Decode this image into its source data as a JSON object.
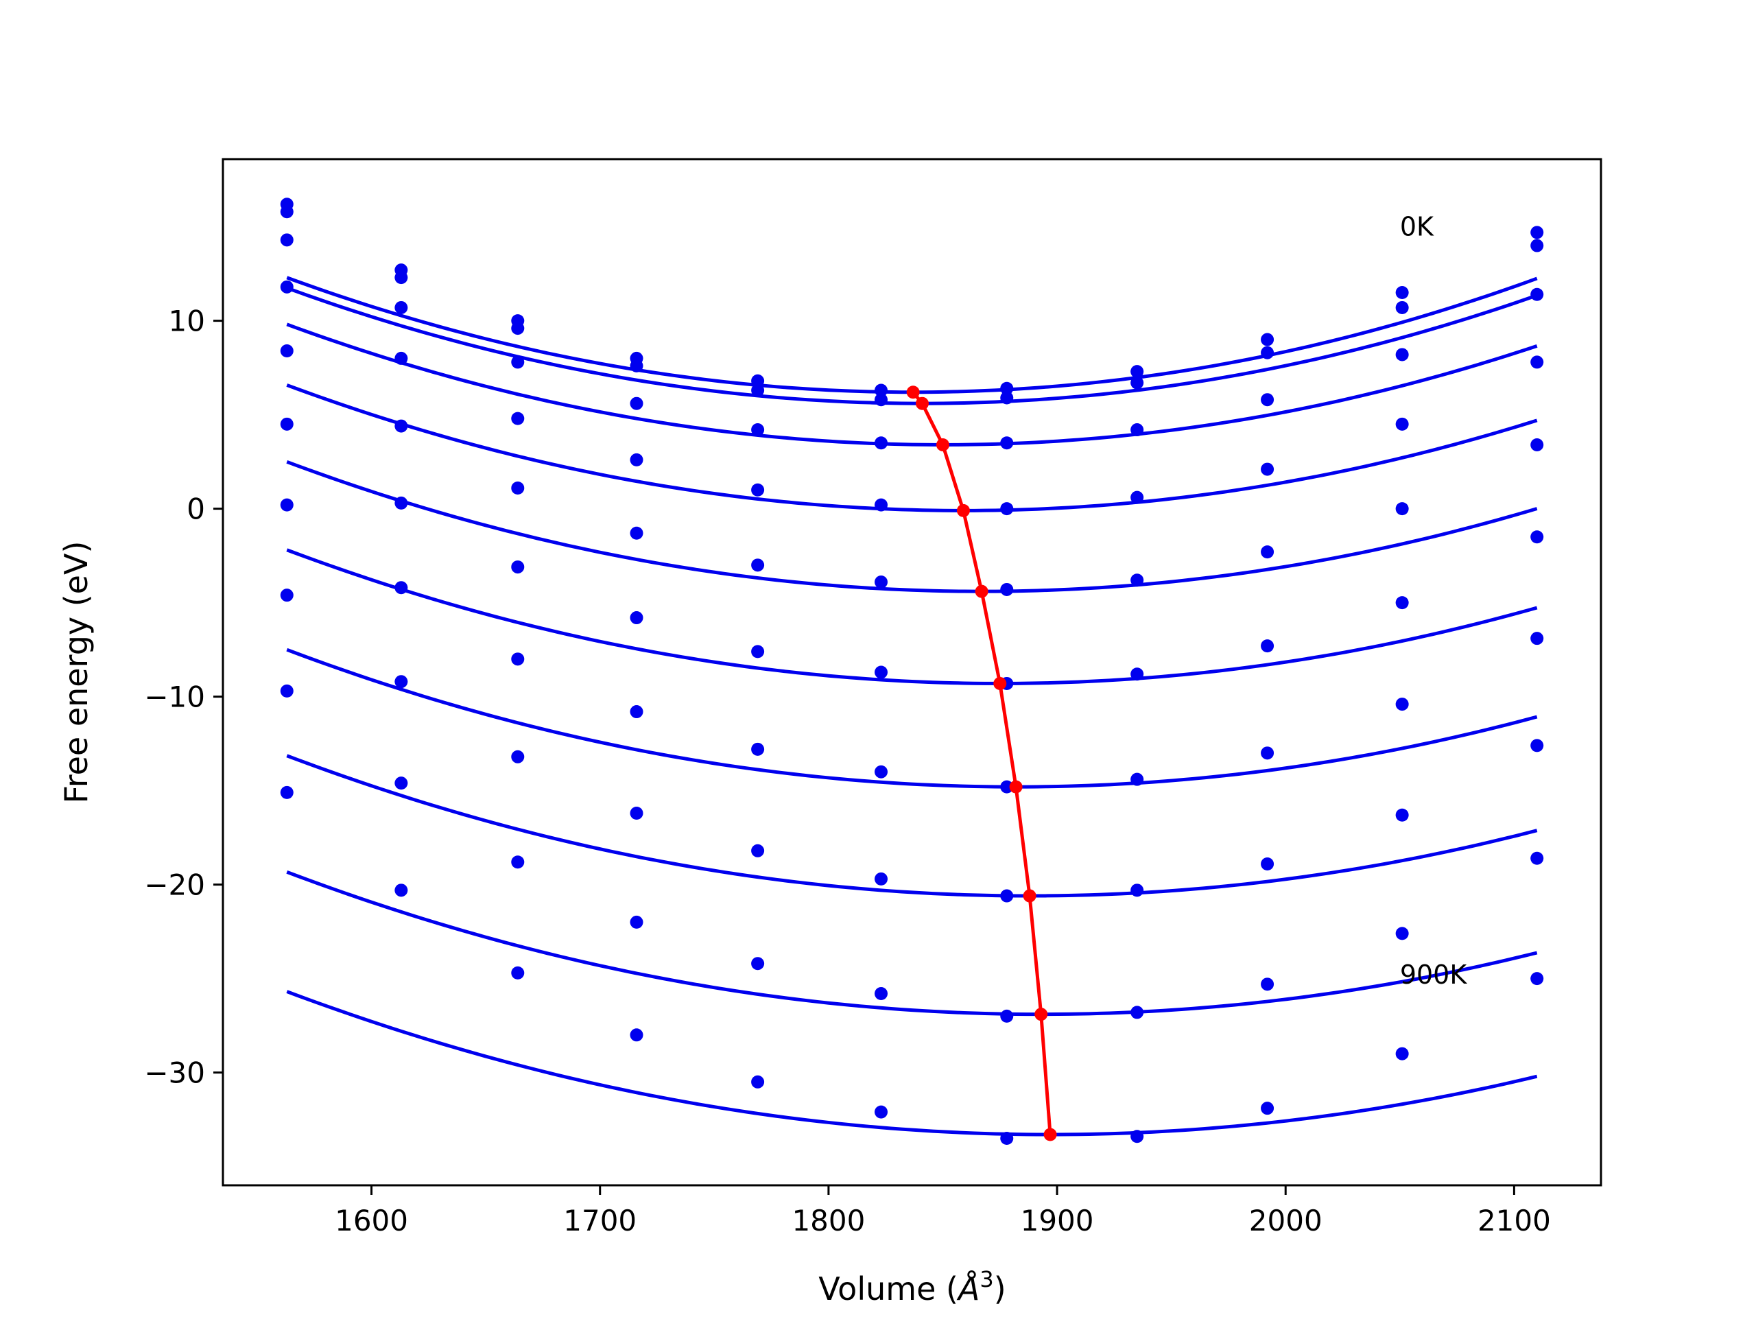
{
  "chart_data": {
    "type": "line",
    "title": "",
    "xlabel": "Volume (",
    "xlabel_symbol": "Å",
    "xlabel_exp": "3",
    "xlabel_end": ")",
    "ylabel": "Free energy (eV)",
    "xlim": [
      1535,
      2138
    ],
    "ylim": [
      -36,
      18.6
    ],
    "xticks": [
      1600,
      1700,
      1800,
      1900,
      2000,
      2100
    ],
    "yticks": [
      10,
      0,
      -10,
      -20,
      -30
    ],
    "xtick_labels": [
      "1600",
      "1700",
      "1800",
      "1900",
      "2000",
      "2100"
    ],
    "ytick_labels": [
      "10",
      "0",
      "−10",
      "−20",
      "−30"
    ],
    "grid": false,
    "annotations": [
      {
        "text": "0K",
        "x": 2050,
        "y": 15.0
      },
      {
        "text": "900K",
        "x": 2050,
        "y": -24.8
      }
    ],
    "colors": {
      "curves": "#0000ee",
      "minima": "#ff0000"
    },
    "x": [
      1563,
      1613,
      1664,
      1716,
      1769,
      1823,
      1878,
      1935,
      1992,
      2051,
      2110
    ],
    "series": [
      {
        "values": [
          16.2,
          12.7,
          10.0,
          8.0,
          6.8,
          6.3,
          6.4,
          7.3,
          9.0,
          11.5,
          14.7
        ],
        "fit": {
          "a": 8.12e-05,
          "v0": 1837,
          "e0": 6.2
        }
      },
      {
        "values": [
          15.8,
          12.3,
          9.6,
          7.6,
          6.3,
          5.8,
          5.9,
          6.7,
          8.3,
          10.7,
          14.0
        ],
        "fit": {
          "a": 7.95e-05,
          "v0": 1841,
          "e0": 5.6
        }
      },
      {
        "values": [
          14.3,
          10.7,
          7.8,
          5.6,
          4.2,
          3.5,
          3.5,
          4.2,
          5.8,
          8.2,
          11.4
        ],
        "fit": {
          "a": 7.78e-05,
          "v0": 1850,
          "e0": 3.4
        }
      },
      {
        "values": [
          11.8,
          8.0,
          4.8,
          2.6,
          1.0,
          0.2,
          0.0,
          0.6,
          2.1,
          4.5,
          7.8
        ],
        "fit": {
          "a": 7.62e-05,
          "v0": 1859,
          "e0": -0.1
        }
      },
      {
        "values": [
          8.4,
          4.4,
          1.1,
          -1.3,
          -3.0,
          -3.9,
          -4.3,
          -3.8,
          -2.3,
          0.0,
          3.4
        ],
        "fit": {
          "a": 7.46e-05,
          "v0": 1867,
          "e0": -4.4
        }
      },
      {
        "values": [
          4.5,
          0.3,
          -3.1,
          -5.8,
          -7.6,
          -8.7,
          -9.3,
          -8.8,
          -7.3,
          -5.0,
          -1.5
        ],
        "fit": {
          "a": 7.3e-05,
          "v0": 1875,
          "e0": -9.3
        }
      },
      {
        "values": [
          0.2,
          -4.2,
          -8.0,
          -10.8,
          -12.8,
          -14.0,
          -14.8,
          -14.4,
          -13.0,
          -10.4,
          -6.9
        ],
        "fit": {
          "a": 7.17e-05,
          "v0": 1882,
          "e0": -14.8
        }
      },
      {
        "values": [
          -4.6,
          -9.2,
          -13.2,
          -16.2,
          -18.2,
          -19.7,
          -20.6,
          -20.3,
          -18.9,
          -16.3,
          -12.6
        ],
        "fit": {
          "a": 7.06e-05,
          "v0": 1888,
          "e0": -20.6
        }
      },
      {
        "values": [
          -9.7,
          -14.6,
          -18.8,
          -22.0,
          -24.2,
          -25.8,
          -27.0,
          -26.8,
          -25.3,
          -22.6,
          -18.6
        ],
        "fit": {
          "a": 6.95e-05,
          "v0": 1893,
          "e0": -26.9
        }
      },
      {
        "values": [
          -15.1,
          -20.3,
          -24.7,
          -28.0,
          -30.5,
          -32.1,
          -33.5,
          -33.4,
          -31.9,
          -29.0,
          -25.0
        ],
        "fit": {
          "a": 6.82e-05,
          "v0": 1897,
          "e0": -33.3
        }
      }
    ],
    "minima_line": {
      "x": [
        1837,
        1841,
        1850,
        1859,
        1867,
        1875,
        1882,
        1888,
        1893,
        1897
      ],
      "y": [
        6.2,
        5.6,
        3.4,
        -0.1,
        -4.4,
        -9.3,
        -14.8,
        -20.6,
        -26.9,
        -33.3
      ]
    }
  }
}
